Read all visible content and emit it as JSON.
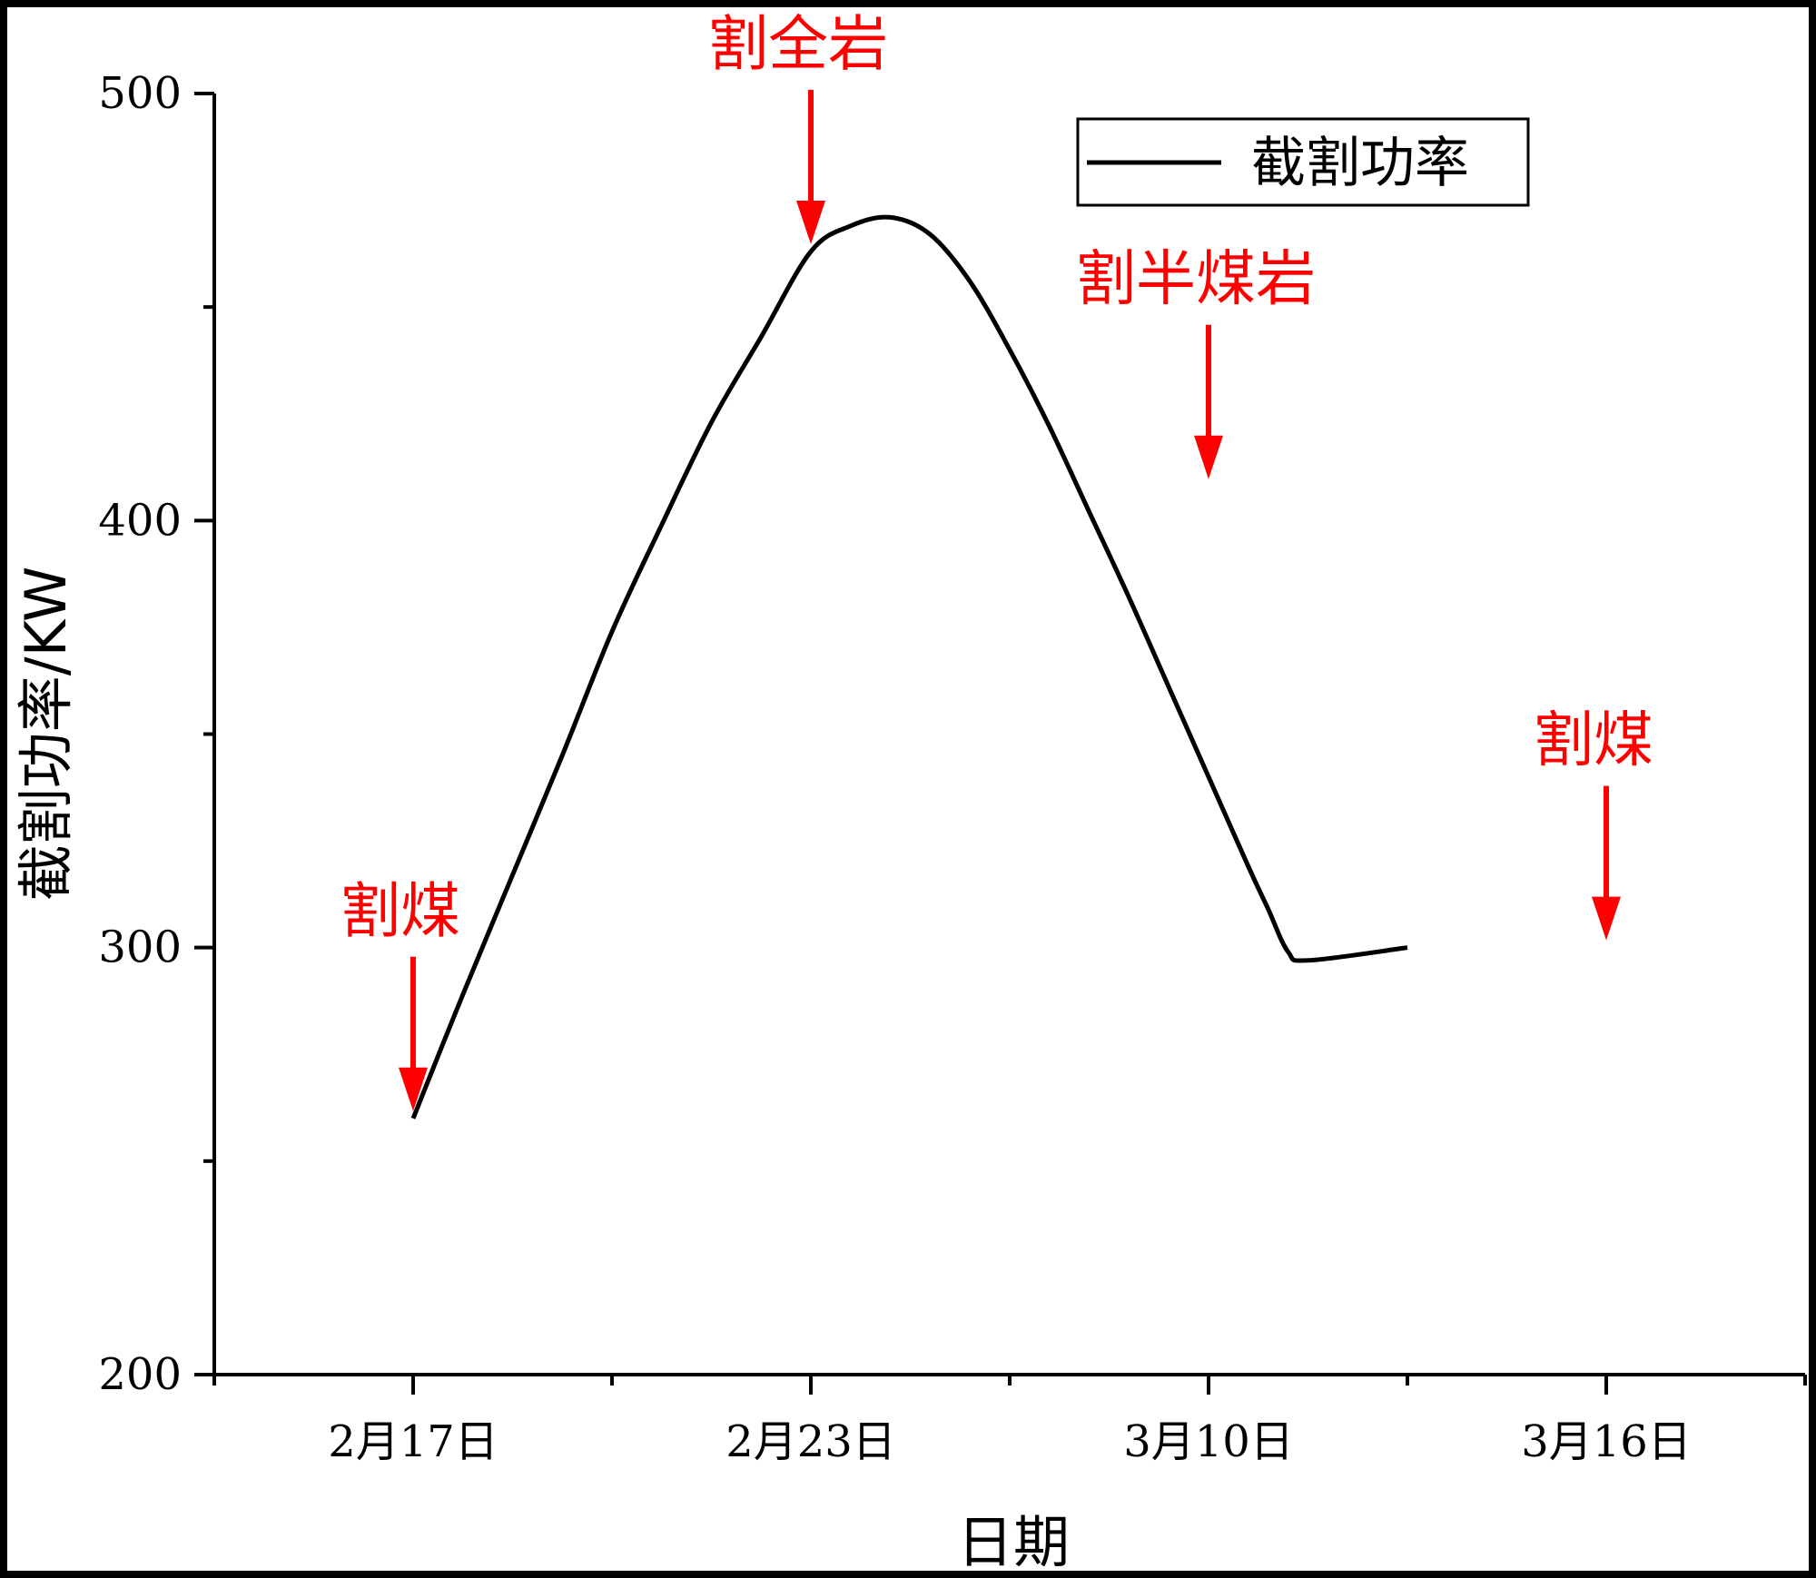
{
  "chart_data": {
    "type": "line",
    "xlabel": "日期",
    "ylabel": "截割功率/KW",
    "ylim": [
      200,
      500
    ],
    "y_ticks": [
      200,
      300,
      400,
      500
    ],
    "x_ticks": [
      "2月17日",
      "2月23日",
      "3月10日",
      "3月16日"
    ],
    "legend": {
      "placement": "top-right"
    },
    "grid": false,
    "series": [
      {
        "name": "截割功率",
        "color": "#000000",
        "points": [
          {
            "x": 0.0,
            "y": 260
          },
          {
            "x": 0.25,
            "y": 289
          },
          {
            "x": 0.5,
            "y": 317
          },
          {
            "x": 0.75,
            "y": 345
          },
          {
            "x": 1.0,
            "y": 374
          },
          {
            "x": 1.25,
            "y": 399
          },
          {
            "x": 1.5,
            "y": 423
          },
          {
            "x": 1.75,
            "y": 443
          },
          {
            "x": 2.0,
            "y": 463
          },
          {
            "x": 2.2,
            "y": 469
          },
          {
            "x": 2.4,
            "y": 471
          },
          {
            "x": 2.6,
            "y": 467
          },
          {
            "x": 2.8,
            "y": 456
          },
          {
            "x": 3.0,
            "y": 440
          },
          {
            "x": 3.2,
            "y": 422
          },
          {
            "x": 3.4,
            "y": 402
          },
          {
            "x": 3.6,
            "y": 382
          },
          {
            "x": 3.8,
            "y": 361
          },
          {
            "x": 4.0,
            "y": 340
          },
          {
            "x": 4.2,
            "y": 319
          },
          {
            "x": 4.3,
            "y": 309
          },
          {
            "x": 4.4,
            "y": 299
          },
          {
            "x": 4.5,
            "y": 297
          },
          {
            "x": 5.0,
            "y": 300
          }
        ]
      }
    ],
    "annotations": [
      {
        "text": "割煤",
        "x": 0,
        "y": 260,
        "color": "#ff0000"
      },
      {
        "text": "割全岩",
        "x": 2,
        "y": 463,
        "color": "#ff0000"
      },
      {
        "text": "割半煤岩",
        "x": 4,
        "y": 408,
        "color": "#ff0000"
      },
      {
        "text": "割煤",
        "x": 6,
        "y": 300,
        "color": "#ff0000"
      }
    ]
  }
}
